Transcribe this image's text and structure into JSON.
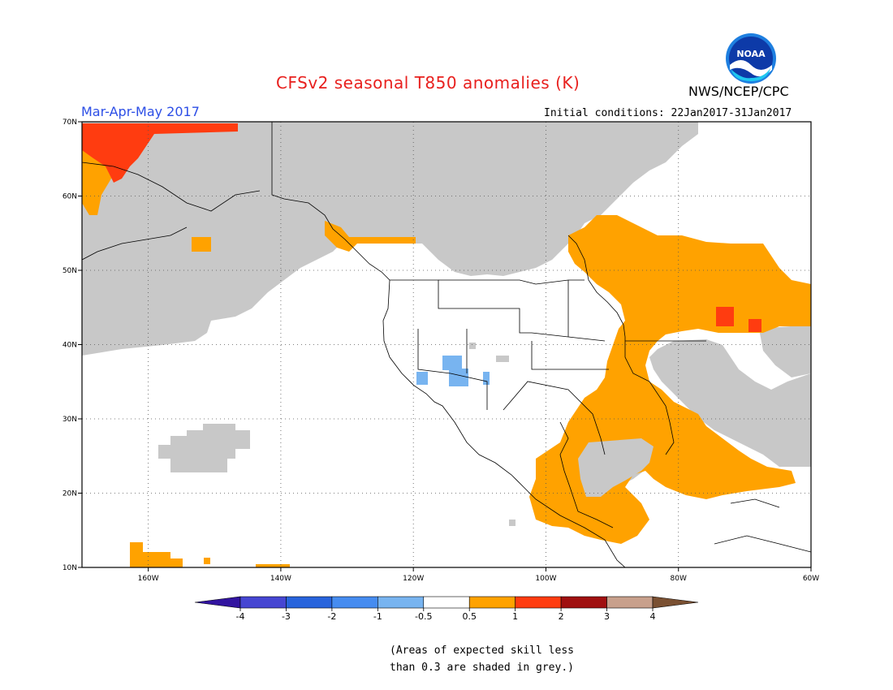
{
  "title": "CFSv2 seasonal T850 anomalies (K)",
  "season": "Mar-Apr-May 2017",
  "initial_conditions": "Initial conditions: 22Jan2017-31Jan2017",
  "agency": "NWS/NCEP/CPC",
  "logo_text": "NOAA",
  "map": {
    "lon_range": [
      -170,
      -60
    ],
    "lat_range": [
      10,
      70
    ],
    "lon_ticks": [
      {
        "lon": -160,
        "label": "160W"
      },
      {
        "lon": -140,
        "label": "140W"
      },
      {
        "lon": -120,
        "label": "120W"
      },
      {
        "lon": -100,
        "label": "100W"
      },
      {
        "lon": -80,
        "label": "80W"
      },
      {
        "lon": -60,
        "label": "60W"
      }
    ],
    "lat_ticks": [
      {
        "lat": 10,
        "label": "10N"
      },
      {
        "lat": 20,
        "label": "20N"
      },
      {
        "lat": 30,
        "label": "30N"
      },
      {
        "lat": 40,
        "label": "40N"
      },
      {
        "lat": 50,
        "label": "50N"
      },
      {
        "lat": 60,
        "label": "60N"
      },
      {
        "lat": 70,
        "label": "70N"
      }
    ],
    "colors": {
      "grey": "#c8c8c8",
      "orange": "#ffa200",
      "red": "#ff3c10",
      "lightblue": "#78b4f0"
    }
  },
  "colorbar": {
    "colors": [
      "#3214a0",
      "#4646d2",
      "#2864dc",
      "#468cf0",
      "#78b4f0",
      "#ffffff",
      "#ffa200",
      "#ff3c10",
      "#a01010",
      "#c8a08c",
      "#7a5032"
    ],
    "labels": [
      "-4",
      "-3",
      "-2",
      "-1",
      "-0.5",
      "0.5",
      "1",
      "2",
      "3",
      "4"
    ]
  },
  "note_line1": "(Areas of expected skill less",
  "note_line2": "than 0.3 are shaded in grey.)"
}
